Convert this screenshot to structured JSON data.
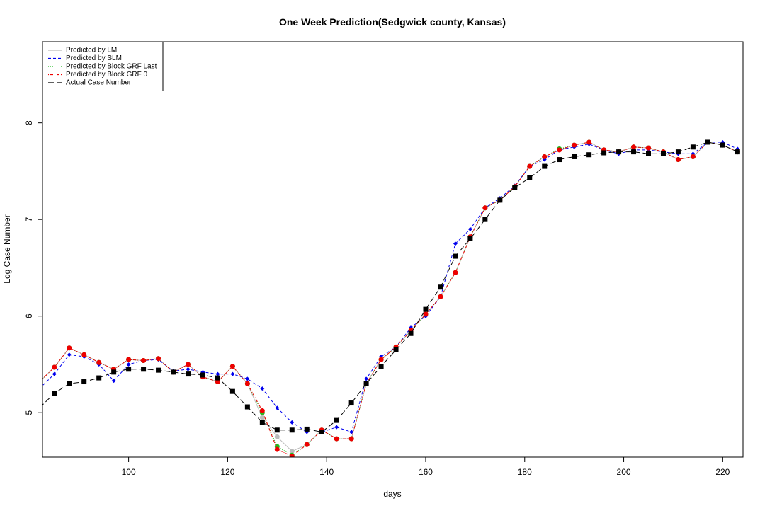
{
  "chart_data": {
    "type": "line",
    "title": "One Week Prediction(Sedgwick county, Kansas)",
    "x_label": "days",
    "y_label": "Log Case Number",
    "x": [
      82,
      85,
      88,
      91,
      94,
      97,
      100,
      103,
      106,
      109,
      112,
      115,
      118,
      121,
      124,
      127,
      130,
      133,
      136,
      139,
      142,
      145,
      148,
      151,
      154,
      157,
      160,
      163,
      166,
      169,
      172,
      175,
      178,
      181,
      184,
      187,
      190,
      193,
      196,
      199,
      202,
      205,
      208,
      211,
      214,
      217,
      220,
      223
    ],
    "xlim": [
      82.6,
      224.1
    ],
    "ylim": [
      4.54,
      8.84
    ],
    "xticks": [
      100,
      120,
      140,
      160,
      180,
      200,
      220
    ],
    "yticks": [
      5,
      6,
      7,
      8
    ],
    "legend": "top-left",
    "series": [
      {
        "name": "Predicted by LM",
        "color": "#bbbbbb",
        "dash": "solid",
        "marker": "circle",
        "values": [
          5.32,
          5.47,
          5.67,
          5.6,
          5.52,
          5.45,
          5.55,
          5.54,
          5.56,
          5.42,
          5.5,
          5.37,
          5.32,
          5.48,
          5.3,
          4.95,
          4.75,
          4.6,
          4.67,
          4.82,
          4.73,
          4.73,
          5.3,
          5.55,
          5.68,
          5.85,
          6.02,
          6.2,
          6.45,
          6.82,
          7.12,
          7.2,
          7.34,
          7.55,
          7.65,
          7.72,
          7.77,
          7.8,
          7.72,
          7.7,
          7.75,
          7.74,
          7.7,
          7.62,
          7.65,
          7.8,
          7.77,
          7.7
        ]
      },
      {
        "name": "Predicted by SLM",
        "color": "#0000ee",
        "dash": "dashed",
        "marker": "diamond",
        "values": [
          5.25,
          5.4,
          5.6,
          5.58,
          5.5,
          5.33,
          5.5,
          5.54,
          5.55,
          5.43,
          5.45,
          5.42,
          5.4,
          5.4,
          5.35,
          5.25,
          5.05,
          4.9,
          4.8,
          4.8,
          4.85,
          4.8,
          5.35,
          5.58,
          5.68,
          5.88,
          6.0,
          6.2,
          6.75,
          6.9,
          7.12,
          7.22,
          7.35,
          7.55,
          7.62,
          7.72,
          7.75,
          7.78,
          7.72,
          7.68,
          7.72,
          7.72,
          7.7,
          7.68,
          7.68,
          7.8,
          7.8,
          7.73
        ]
      },
      {
        "name": "Predicted by Block GRF Last",
        "color": "#22bb22",
        "dash": "dotted",
        "marker": "circle",
        "values": [
          5.32,
          5.47,
          5.67,
          5.6,
          5.52,
          5.45,
          5.55,
          5.54,
          5.56,
          5.42,
          5.5,
          5.37,
          5.32,
          5.48,
          5.3,
          5.0,
          4.65,
          4.56,
          4.67,
          4.82,
          4.73,
          4.73,
          5.3,
          5.55,
          5.68,
          5.85,
          6.02,
          6.2,
          6.45,
          6.82,
          7.12,
          7.2,
          7.34,
          7.55,
          7.65,
          7.73,
          7.77,
          7.8,
          7.72,
          7.7,
          7.75,
          7.74,
          7.7,
          7.62,
          7.65,
          7.8,
          7.77,
          7.7
        ]
      },
      {
        "name": "Predicted by Block GRF 0",
        "color": "#ee0000",
        "dash": "dotdash",
        "marker": "circle",
        "values": [
          5.32,
          5.47,
          5.67,
          5.6,
          5.52,
          5.45,
          5.55,
          5.54,
          5.56,
          5.42,
          5.5,
          5.37,
          5.32,
          5.48,
          5.3,
          5.02,
          4.62,
          4.55,
          4.67,
          4.82,
          4.73,
          4.73,
          5.3,
          5.55,
          5.68,
          5.85,
          6.02,
          6.2,
          6.45,
          6.82,
          7.12,
          7.2,
          7.34,
          7.55,
          7.65,
          7.72,
          7.77,
          7.8,
          7.72,
          7.7,
          7.75,
          7.74,
          7.7,
          7.62,
          7.65,
          7.8,
          7.77,
          7.7
        ]
      },
      {
        "name": "Actual Case Number",
        "color": "#000000",
        "dash": "longdash",
        "marker": "square",
        "values": [
          5.05,
          5.2,
          5.3,
          5.32,
          5.36,
          5.42,
          5.45,
          5.45,
          5.44,
          5.42,
          5.4,
          5.39,
          5.36,
          5.22,
          5.06,
          4.9,
          4.82,
          4.82,
          4.83,
          4.8,
          4.92,
          5.1,
          5.3,
          5.48,
          5.65,
          5.82,
          6.07,
          6.3,
          6.62,
          6.8,
          7.0,
          7.2,
          7.33,
          7.43,
          7.55,
          7.62,
          7.65,
          7.67,
          7.69,
          7.7,
          7.7,
          7.68,
          7.68,
          7.7,
          7.75,
          7.8,
          7.77,
          7.7
        ]
      }
    ]
  }
}
